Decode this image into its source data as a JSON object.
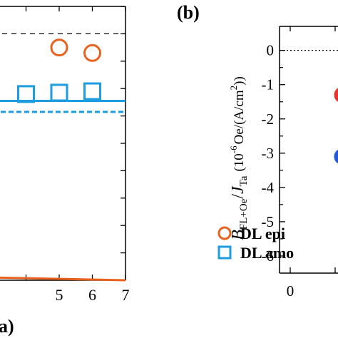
{
  "chart_data": [
    {
      "panel_label": "",
      "type": "scatter",
      "xlim": [
        3.0,
        7.0
      ],
      "ylim": [
        -9.0,
        1.0
      ],
      "xticks": [
        5,
        6,
        7
      ],
      "xtick_labels": [
        "5",
        "6",
        "7"
      ],
      "hline_dashed": 0,
      "series": [
        {
          "name": "DL epi",
          "marker": "circle-open",
          "color": "#e8621d",
          "x": [
            5,
            6
          ],
          "y": [
            -0.5,
            -0.7
          ]
        },
        {
          "name": "DL amo",
          "marker": "square-open",
          "color": "#1d9de0",
          "x": [
            4,
            5,
            6
          ],
          "y": [
            -2.2,
            -2.15,
            -2.1
          ]
        }
      ],
      "fit_lines": [
        {
          "series": "DL amo",
          "style": "solid",
          "color": "#1d9de0",
          "x": [
            3.0,
            7.0
          ],
          "y": [
            -2.45,
            -2.45
          ]
        },
        {
          "series": "DL amo",
          "style": "dotted",
          "color": "#1d9de0",
          "x": [
            3.0,
            7.0
          ],
          "y": [
            -2.85,
            -2.85
          ]
        },
        {
          "series": "DL epi",
          "style": "solid",
          "color": "#e8621d",
          "x": [
            3.0,
            7.0
          ],
          "y": [
            -8.9,
            -9.0
          ]
        }
      ],
      "legend": {
        "position": "bottom-right",
        "entries": [
          "DL epi",
          "DL amo"
        ]
      },
      "bottom_label": "a)"
    },
    {
      "panel_label": "(b)",
      "type": "scatter",
      "ylabel_main": "B",
      "ylabel_main_sub": "FL+Oe",
      "ylabel_slash": "/",
      "ylabel_den": "J",
      "ylabel_den_sub": "Ta",
      "ylabel_units_a": "(10",
      "ylabel_units_exp": "-6",
      "ylabel_units_b": "Oe/(A/cm",
      "ylabel_units_exp2": "2",
      "ylabel_units_c": "))",
      "ylim": [
        -6.5,
        0.7
      ],
      "yticks": [
        0,
        -1,
        -2,
        -3,
        -4,
        -5,
        -6
      ],
      "ytick_labels": [
        "0",
        "-1",
        "-2",
        "-3",
        "-4",
        "-5",
        "-6"
      ],
      "xtick_labels": [
        "0"
      ],
      "hline_dotted": 0,
      "series": [
        {
          "name": "",
          "marker": "circle-filled",
          "color": "#e8352d",
          "x": [
            1
          ],
          "y": [
            -1.3
          ]
        },
        {
          "name": "",
          "marker": "circle-filled",
          "color": "#2358d6",
          "x": [
            1
          ],
          "y": [
            -3.1
          ]
        }
      ]
    }
  ]
}
